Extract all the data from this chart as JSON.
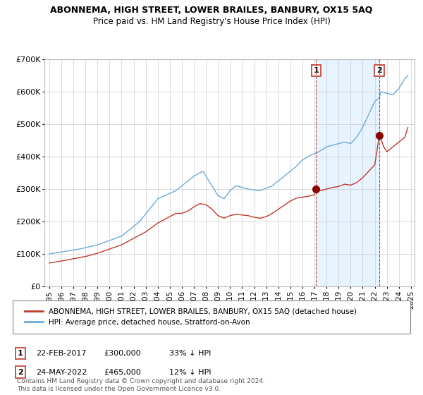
{
  "title": "ABONNEMA, HIGH STREET, LOWER BRAILES, BANBURY, OX15 5AQ",
  "subtitle": "Price paid vs. HM Land Registry's House Price Index (HPI)",
  "legend_line1": "ABONNEMA, HIGH STREET, LOWER BRAILES, BANBURY, OX15 5AQ (detached house)",
  "legend_line2": "HPI: Average price, detached house, Stratford-on-Avon",
  "annotation1": {
    "label": "1",
    "date": "22-FEB-2017",
    "price": "£300,000",
    "pct": "33% ↓ HPI",
    "x_year": 2017.13
  },
  "annotation2": {
    "label": "2",
    "date": "24-MAY-2022",
    "price": "£465,000",
    "pct": "12% ↓ HPI",
    "x_year": 2022.38
  },
  "footer": "Contains HM Land Registry data © Crown copyright and database right 2024.\nThis data is licensed under the Open Government Licence v3.0.",
  "hpi_color": "#6aabdc",
  "price_color": "#c0392b",
  "marker_color": "#8b0000",
  "vline_color": "#c0392b",
  "shade_color": "#ddeeff",
  "background_color": "#ffffff",
  "grid_color": "#cccccc",
  "ylim": [
    0,
    700000
  ],
  "yticks": [
    0,
    100000,
    200000,
    300000,
    400000,
    500000,
    600000,
    700000
  ],
  "ytick_labels": [
    "£0",
    "£100K",
    "£200K",
    "£300K",
    "£400K",
    "£500K",
    "£600K",
    "£700K"
  ],
  "xlim_start": 1994.6,
  "xlim_end": 2025.3
}
